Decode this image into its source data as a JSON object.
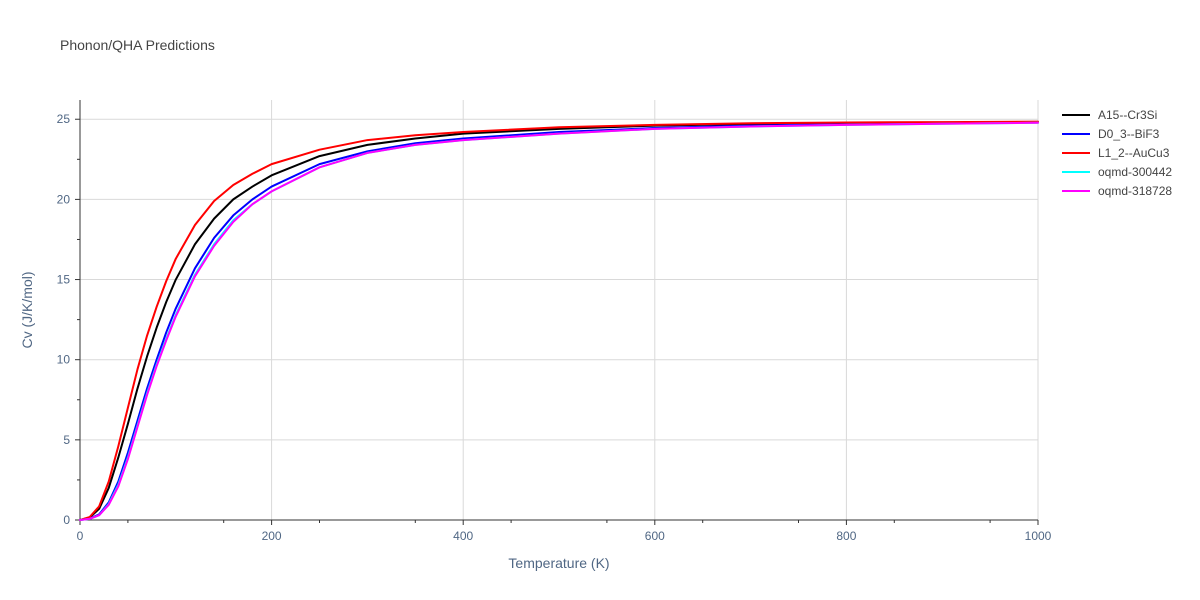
{
  "chart_data": {
    "type": "line",
    "title": "Phonon/QHA Predictions",
    "xlabel": "Temperature (K)",
    "ylabel": "Cv (J/K/mol)",
    "xlim": [
      0,
      1000
    ],
    "ylim": [
      0,
      26.2
    ],
    "x_ticks": [
      0,
      200,
      400,
      600,
      800,
      1000
    ],
    "x_tick_labels": [
      "0",
      "200",
      "400",
      "600",
      "800",
      "1000"
    ],
    "y_ticks": [
      0,
      5,
      10,
      15,
      20,
      25
    ],
    "y_tick_labels": [
      "0",
      "5",
      "10",
      "15",
      "20",
      "25"
    ],
    "grid": true,
    "legend_position": "top-right",
    "x": [
      0,
      10,
      20,
      30,
      40,
      50,
      60,
      70,
      80,
      90,
      100,
      120,
      140,
      160,
      180,
      200,
      250,
      300,
      350,
      400,
      500,
      600,
      700,
      800,
      900,
      1000
    ],
    "series": [
      {
        "name": "A15--Cr3Si",
        "color": "#000000",
        "values": [
          0,
          0.15,
          0.7,
          2.0,
          3.9,
          6.0,
          8.2,
          10.2,
          12.0,
          13.6,
          15.0,
          17.2,
          18.8,
          20.0,
          20.8,
          21.5,
          22.7,
          23.4,
          23.8,
          24.1,
          24.4,
          24.6,
          24.7,
          24.75,
          24.8,
          24.8
        ]
      },
      {
        "name": "D0_3--BiF3",
        "color": "#0000ff",
        "values": [
          0,
          0.08,
          0.35,
          1.1,
          2.4,
          4.2,
          6.2,
          8.2,
          10.0,
          11.7,
          13.2,
          15.7,
          17.6,
          19.0,
          20.0,
          20.8,
          22.2,
          23.0,
          23.5,
          23.8,
          24.2,
          24.45,
          24.6,
          24.7,
          24.75,
          24.8
        ]
      },
      {
        "name": "L1_2--AuCu3",
        "color": "#ff0000",
        "values": [
          0,
          0.18,
          0.85,
          2.4,
          4.6,
          7.0,
          9.4,
          11.5,
          13.3,
          14.9,
          16.3,
          18.4,
          19.9,
          20.9,
          21.6,
          22.2,
          23.1,
          23.7,
          24.0,
          24.2,
          24.5,
          24.65,
          24.75,
          24.8,
          24.82,
          24.85
        ]
      },
      {
        "name": "oqmd-300442",
        "color": "#00ffff",
        "values": [
          0,
          0.07,
          0.3,
          1.0,
          2.2,
          3.9,
          5.9,
          7.9,
          9.7,
          11.3,
          12.8,
          15.3,
          17.2,
          18.7,
          19.7,
          20.5,
          22.0,
          22.9,
          23.4,
          23.7,
          24.1,
          24.4,
          24.55,
          24.65,
          24.72,
          24.78
        ]
      },
      {
        "name": "oqmd-318728",
        "color": "#ff00ff",
        "values": [
          0,
          0.07,
          0.3,
          0.95,
          2.1,
          3.8,
          5.8,
          7.8,
          9.6,
          11.2,
          12.7,
          15.2,
          17.1,
          18.6,
          19.7,
          20.5,
          22.0,
          22.9,
          23.4,
          23.7,
          24.1,
          24.4,
          24.55,
          24.65,
          24.72,
          24.78
        ]
      }
    ]
  }
}
